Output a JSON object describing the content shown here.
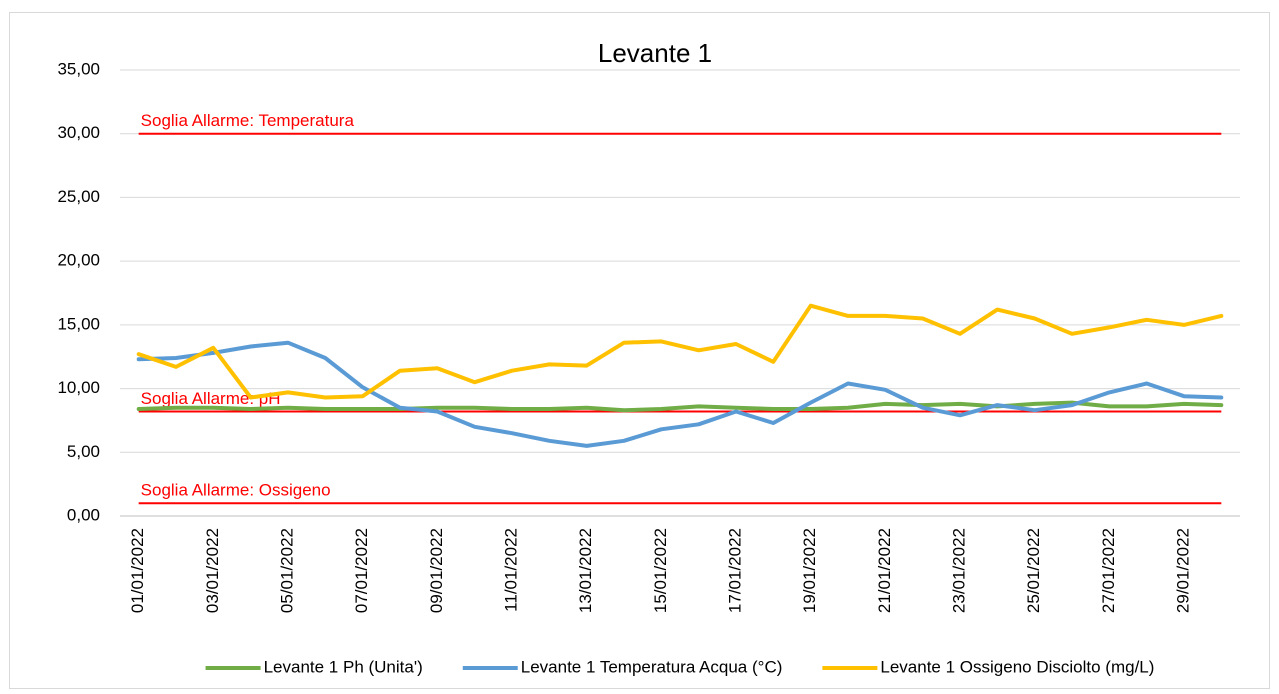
{
  "chart_data": {
    "type": "line",
    "title": "Levante 1",
    "categories": [
      "01/01/2022",
      null,
      "03/01/2022",
      null,
      "05/01/2022",
      null,
      "07/01/2022",
      null,
      "09/01/2022",
      null,
      "11/01/2022",
      null,
      "13/01/2022",
      null,
      "15/01/2022",
      null,
      "17/01/2022",
      null,
      "19/01/2022",
      null,
      "21/01/2022",
      null,
      "23/01/2022",
      null,
      "25/01/2022",
      null,
      "27/01/2022",
      null,
      "29/01/2022",
      null
    ],
    "series": [
      {
        "name": "Levante 1 Ph (Unita')",
        "color": "#70ad47",
        "values": [
          8.4,
          8.5,
          8.5,
          8.4,
          8.5,
          8.4,
          8.4,
          8.4,
          8.5,
          8.5,
          8.4,
          8.4,
          8.5,
          8.3,
          8.4,
          8.6,
          8.5,
          8.4,
          8.4,
          8.5,
          8.8,
          8.7,
          8.8,
          8.6,
          8.8,
          8.9,
          8.6,
          8.6,
          8.8,
          8.7
        ]
      },
      {
        "name": "Levante 1 Temperatura Acqua (°C)",
        "color": "#5b9bd5",
        "values": [
          12.3,
          12.4,
          12.8,
          13.3,
          13.6,
          12.4,
          10.1,
          8.5,
          8.2,
          7.0,
          6.5,
          5.9,
          5.5,
          5.9,
          6.8,
          7.2,
          8.2,
          7.3,
          8.9,
          10.4,
          9.9,
          8.5,
          7.9,
          8.7,
          8.3,
          8.7,
          9.7,
          10.4,
          9.4,
          9.3
        ]
      },
      {
        "name": "Levante 1 Ossigeno Disciolto (mg/L)",
        "color": "#ffc000",
        "values": [
          12.7,
          11.7,
          13.2,
          9.3,
          9.7,
          9.3,
          9.4,
          11.4,
          11.6,
          10.5,
          11.4,
          11.9,
          11.8,
          13.6,
          13.7,
          13.0,
          13.5,
          12.1,
          16.5,
          15.7,
          15.7,
          15.5,
          14.3,
          16.2,
          15.5,
          14.3,
          14.8,
          15.4,
          15.0,
          15.7
        ]
      }
    ],
    "thresholds": [
      {
        "label": "Soglia Allarme: Temperatura",
        "value": 30,
        "color": "#ff0000"
      },
      {
        "label": "Soglia Allarme: pH",
        "value": 8.2,
        "color": "#ff0000"
      },
      {
        "label": "Soglia Allarme: Ossigeno",
        "value": 1,
        "color": "#ff0000"
      }
    ],
    "ylim": [
      0,
      35
    ],
    "yticks": [
      {
        "value": 0,
        "label": "0,00"
      },
      {
        "value": 5,
        "label": "5,00"
      },
      {
        "value": 10,
        "label": "10,00"
      },
      {
        "value": 15,
        "label": "15,00"
      },
      {
        "value": 20,
        "label": "20,00"
      },
      {
        "value": 25,
        "label": "25,00"
      },
      {
        "value": 30,
        "label": "30,00"
      },
      {
        "value": 35,
        "label": "35,00"
      }
    ],
    "grid": true,
    "legend": "bottom"
  }
}
